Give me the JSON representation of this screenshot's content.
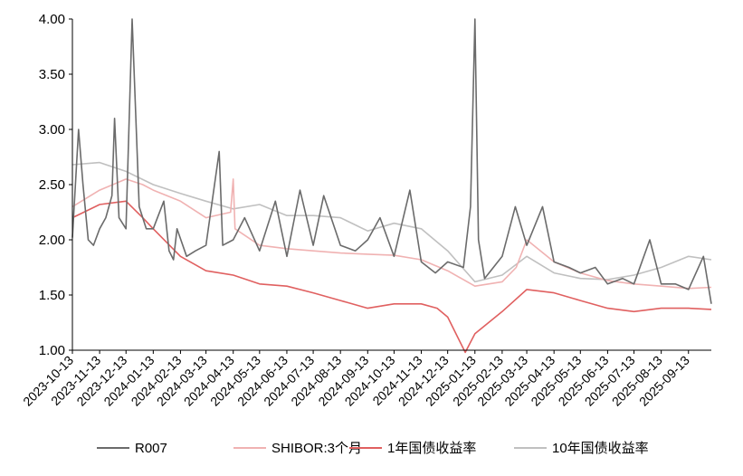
{
  "chart_data": {
    "type": "line",
    "title": "",
    "xlabel": "",
    "ylabel": "",
    "ylim": [
      1.0,
      4.0
    ],
    "y_ticks": [
      "1.00",
      "1.50",
      "2.00",
      "2.50",
      "3.00",
      "3.50",
      "4.00"
    ],
    "x_ticks": [
      "2023-10-13",
      "2023-11-13",
      "2023-12-13",
      "2024-01-13",
      "2024-02-13",
      "2024-03-13",
      "2024-04-13",
      "2024-05-13",
      "2024-06-13",
      "2024-07-13",
      "2024-08-13",
      "2024-09-13",
      "2024-10-13",
      "2024-11-13",
      "2024-12-13",
      "2025-01-13",
      "2025-02-13",
      "2025-03-13",
      "2025-04-13",
      "2025-05-13",
      "2025-06-13",
      "2025-07-13",
      "2025-08-13",
      "2025-09-13"
    ],
    "grid": false,
    "legend_position": "bottom",
    "series": [
      {
        "name": "R007",
        "color": "#6b6b6b",
        "x": [
          "2023-10-13",
          "2023-10-20",
          "2023-10-25",
          "2023-10-31",
          "2023-11-06",
          "2023-11-13",
          "2023-11-20",
          "2023-11-27",
          "2023-11-30",
          "2023-12-05",
          "2023-12-13",
          "2023-12-20",
          "2023-12-28",
          "2024-01-05",
          "2024-01-13",
          "2024-01-25",
          "2024-01-31",
          "2024-02-05",
          "2024-02-09",
          "2024-02-20",
          "2024-03-01",
          "2024-03-13",
          "2024-03-28",
          "2024-04-01",
          "2024-04-13",
          "2024-04-26",
          "2024-05-13",
          "2024-05-31",
          "2024-06-13",
          "2024-06-28",
          "2024-07-13",
          "2024-07-25",
          "2024-08-13",
          "2024-08-30",
          "2024-09-13",
          "2024-09-27",
          "2024-10-13",
          "2024-10-31",
          "2024-11-13",
          "2024-11-29",
          "2024-12-13",
          "2024-12-31",
          "2025-01-08",
          "2025-01-13",
          "2025-01-17",
          "2025-01-24",
          "2025-02-13",
          "2025-02-28",
          "2025-03-13",
          "2025-03-31",
          "2025-04-13",
          "2025-04-30",
          "2025-05-13",
          "2025-05-30",
          "2025-06-13",
          "2025-06-30",
          "2025-07-13",
          "2025-07-31",
          "2025-08-13",
          "2025-08-29",
          "2025-09-13",
          "2025-09-30",
          "2025-10-09"
        ],
        "y": [
          2.02,
          3.0,
          2.5,
          2.0,
          1.95,
          2.1,
          2.2,
          2.4,
          3.1,
          2.2,
          2.1,
          4.0,
          2.3,
          2.1,
          2.1,
          2.35,
          1.9,
          1.82,
          2.1,
          1.85,
          1.9,
          1.95,
          2.8,
          1.95,
          2.0,
          2.2,
          1.9,
          2.35,
          1.85,
          2.45,
          1.95,
          2.4,
          1.95,
          1.9,
          2.0,
          2.2,
          1.85,
          2.45,
          1.8,
          1.7,
          1.8,
          1.75,
          2.3,
          4.0,
          2.0,
          1.65,
          1.85,
          2.3,
          1.95,
          2.3,
          1.8,
          1.75,
          1.7,
          1.75,
          1.6,
          1.65,
          1.6,
          2.0,
          1.6,
          1.6,
          1.55,
          1.85,
          1.42
        ]
      },
      {
        "name": "SHIBOR:3个月",
        "color": "#f0b2b2",
        "x": [
          "2023-10-13",
          "2023-11-13",
          "2023-12-13",
          "2024-01-01",
          "2024-01-13",
          "2024-02-13",
          "2024-03-13",
          "2024-04-10",
          "2024-04-13",
          "2024-04-15",
          "2024-05-13",
          "2024-06-13",
          "2024-07-13",
          "2024-08-13",
          "2024-09-13",
          "2024-10-13",
          "2024-11-13",
          "2024-12-13",
          "2025-01-13",
          "2025-02-13",
          "2025-03-01",
          "2025-03-13",
          "2025-04-13",
          "2025-05-13",
          "2025-06-13",
          "2025-07-13",
          "2025-08-13",
          "2025-09-13",
          "2025-10-09"
        ],
        "y": [
          2.3,
          2.45,
          2.55,
          2.5,
          2.45,
          2.35,
          2.2,
          2.25,
          2.55,
          2.1,
          1.95,
          1.92,
          1.9,
          1.88,
          1.87,
          1.86,
          1.82,
          1.72,
          1.58,
          1.62,
          1.75,
          2.0,
          1.8,
          1.7,
          1.63,
          1.6,
          1.58,
          1.56,
          1.57
        ]
      },
      {
        "name": "1年国债收益率",
        "color": "#e06060",
        "x": [
          "2023-10-13",
          "2023-11-13",
          "2023-12-13",
          "2024-01-01",
          "2024-01-13",
          "2024-02-13",
          "2024-03-13",
          "2024-04-13",
          "2024-05-13",
          "2024-06-13",
          "2024-07-13",
          "2024-08-13",
          "2024-09-13",
          "2024-10-13",
          "2024-11-13",
          "2024-12-01",
          "2024-12-13",
          "2025-01-02",
          "2025-01-13",
          "2025-02-13",
          "2025-03-13",
          "2025-04-13",
          "2025-05-13",
          "2025-06-13",
          "2025-07-13",
          "2025-08-13",
          "2025-09-13",
          "2025-10-09"
        ],
        "y": [
          2.2,
          2.32,
          2.35,
          2.2,
          2.1,
          1.85,
          1.72,
          1.68,
          1.6,
          1.58,
          1.52,
          1.45,
          1.38,
          1.42,
          1.42,
          1.38,
          1.3,
          0.98,
          1.15,
          1.35,
          1.55,
          1.52,
          1.45,
          1.38,
          1.35,
          1.38,
          1.38,
          1.37
        ]
      },
      {
        "name": "10年国债收益率",
        "color": "#c0c0c0",
        "x": [
          "2023-10-13",
          "2023-11-13",
          "2023-12-13",
          "2024-01-13",
          "2024-02-13",
          "2024-03-13",
          "2024-04-13",
          "2024-05-13",
          "2024-06-13",
          "2024-07-13",
          "2024-08-13",
          "2024-09-13",
          "2024-10-13",
          "2024-11-13",
          "2024-12-13",
          "2025-01-13",
          "2025-02-13",
          "2025-03-13",
          "2025-04-13",
          "2025-05-13",
          "2025-06-13",
          "2025-07-13",
          "2025-08-13",
          "2025-09-13",
          "2025-10-09"
        ],
        "y": [
          2.68,
          2.7,
          2.62,
          2.5,
          2.42,
          2.35,
          2.28,
          2.32,
          2.22,
          2.22,
          2.2,
          2.08,
          2.15,
          2.1,
          1.9,
          1.62,
          1.68,
          1.85,
          1.7,
          1.65,
          1.64,
          1.68,
          1.75,
          1.85,
          1.82
        ]
      }
    ]
  }
}
